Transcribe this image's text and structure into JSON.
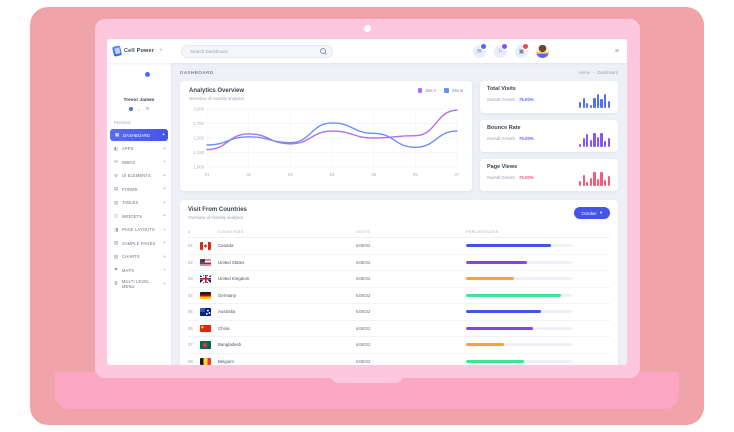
{
  "navbar": {
    "brand": "Cell Power",
    "search": {
      "placeholder": "Search Dashboard"
    },
    "action_icons": [
      {
        "name": "mail",
        "badge_color": "#4a6cf7"
      },
      {
        "name": "notifications",
        "badge_color": "#8950f0"
      },
      {
        "name": "cart",
        "badge_color": "#f0435c"
      }
    ]
  },
  "sidebar": {
    "user": {
      "name": "Trevor James",
      "status_color": "#4a6cf7",
      "quick_icons": [
        "chat",
        "home",
        "settings"
      ]
    },
    "section_label": "Personal",
    "items": [
      {
        "label": "Dashboard",
        "icon": "dashboard",
        "active": true
      },
      {
        "label": "Apps",
        "icon": "apps",
        "active": false
      },
      {
        "label": "Inbox",
        "icon": "inbox",
        "active": false
      },
      {
        "label": "UI Elements",
        "icon": "ui-elements",
        "active": false
      },
      {
        "label": "Forms",
        "icon": "forms",
        "active": false
      },
      {
        "label": "Tables",
        "icon": "tables",
        "active": false
      },
      {
        "label": "Widgets",
        "icon": "widgets",
        "active": false
      },
      {
        "label": "Page Layouts",
        "icon": "page-layouts",
        "active": false
      },
      {
        "label": "Sample Pages",
        "icon": "sample-pages",
        "active": false
      },
      {
        "label": "Charts",
        "icon": "charts",
        "active": false
      },
      {
        "label": "Maps",
        "icon": "maps",
        "active": false
      },
      {
        "label": "Multi Level Menu",
        "icon": "multi-level-menu",
        "active": false
      }
    ]
  },
  "breadcrumb": {
    "page_title": "DASHBOARD",
    "home": "Home",
    "current": "Dashboard"
  },
  "analytics": {
    "title": "Analytics Overview",
    "subtitle": "Overview of monthly analytics"
  },
  "stats": [
    {
      "title": "Total Visits",
      "label": "Overall Growth",
      "value": "75.00%",
      "color": "#5271f2"
    },
    {
      "title": "Bounce Rate",
      "label": "Overall Growth",
      "value": "75.00%",
      "color": "#8657ef"
    },
    {
      "title": "Page Views",
      "label": "Overall Growth",
      "value": "75.00%",
      "color": "#ef5d7a"
    }
  ],
  "countries": {
    "title": "Visit From Countries",
    "subtitle": "Overview of monthly analytics",
    "period_button": "October",
    "columns": [
      "#",
      "COUNTRIES",
      "VISITS",
      "PERCENTAGES"
    ],
    "rows": [
      {
        "num": "01",
        "country": "Canada",
        "flag": "ca",
        "visits": "645032",
        "percent": 80,
        "bar_color": "#4253e8"
      },
      {
        "num": "02",
        "country": "United States",
        "flag": "us",
        "visits": "645032",
        "percent": 58,
        "bar_color": "#8245f0"
      },
      {
        "num": "03",
        "country": "United Kingdom",
        "flag": "gb",
        "visits": "645032",
        "percent": 45,
        "bar_color": "#f7a23b"
      },
      {
        "num": "04",
        "country": "Germany",
        "flag": "de",
        "visits": "645032",
        "percent": 90,
        "bar_color": "#3fe396"
      },
      {
        "num": "05",
        "country": "Australia",
        "flag": "au",
        "visits": "645032",
        "percent": 71,
        "bar_color": "#4253e8"
      },
      {
        "num": "06",
        "country": "China",
        "flag": "cn",
        "visits": "645032",
        "percent": 63,
        "bar_color": "#8245f0"
      },
      {
        "num": "07",
        "country": "Bangladesh",
        "flag": "bd",
        "visits": "645032",
        "percent": 36,
        "bar_color": "#f7a23b"
      },
      {
        "num": "08",
        "country": "Belgium",
        "flag": "be",
        "visits": "645032",
        "percent": 55,
        "bar_color": "#3fe396"
      }
    ]
  },
  "chart_data": [
    {
      "type": "line",
      "title": "Analytics Overview",
      "x": [
        "01",
        "02",
        "03",
        "04",
        "05",
        "06",
        "07"
      ],
      "ylim": [
        1000,
        2000
      ],
      "ytick_labels": [
        "2,000",
        "1,750",
        "1,500",
        "1,250",
        "1,000"
      ],
      "grid": true,
      "legend_position": "top-right",
      "series": [
        {
          "name": "Site A",
          "color": "#b36fe6",
          "values": [
            1300,
            1570,
            1400,
            1620,
            1500,
            1540,
            1980
          ]
        },
        {
          "name": "Site B",
          "color": "#6e8ff5",
          "values": [
            1380,
            1520,
            1420,
            1760,
            1580,
            1340,
            1620
          ]
        }
      ]
    },
    {
      "type": "bar",
      "title": "Total Visits sparkline",
      "color": "#5271f2",
      "values": [
        35,
        65,
        30,
        20,
        60,
        90,
        55,
        85,
        45
      ]
    },
    {
      "type": "bar",
      "title": "Bounce Rate sparkline",
      "color": "#8657ef",
      "values": [
        20,
        55,
        80,
        45,
        90,
        60,
        85,
        35,
        55
      ]
    },
    {
      "type": "bar",
      "title": "Page Views sparkline",
      "color": "#ef5d7a",
      "values": [
        30,
        70,
        25,
        50,
        90,
        45,
        85,
        35,
        60
      ]
    }
  ]
}
